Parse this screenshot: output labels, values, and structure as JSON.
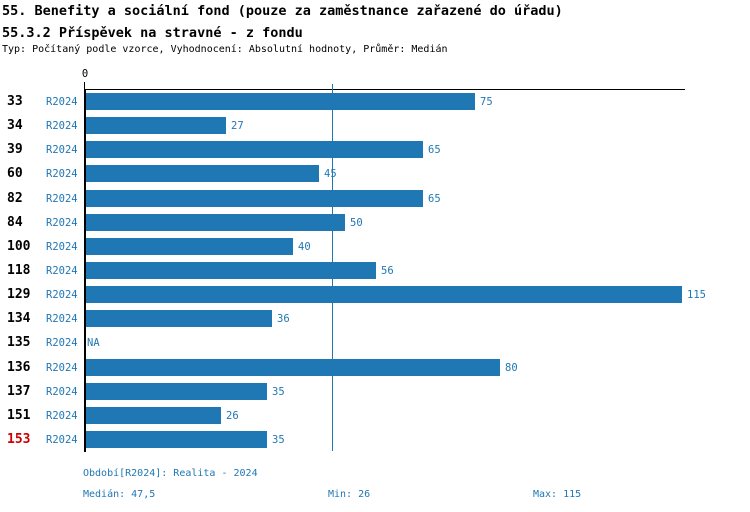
{
  "title": "55. Benefity a sociální fond (pouze za zaměstnance zařazené do úřadu)",
  "subtitle": "55.3.2 Příspěvek na stravné - z fondu",
  "meta": "Typ: Počítaný podle vzorce, Vyhodnocení: Absolutní hodnoty, Průměr: Medián",
  "colors": {
    "bar_blue": "#1f77b4",
    "text_blue": "#1f77b4",
    "highlight_red": "#cc0000",
    "axis_black": "#000000"
  },
  "chart_data": {
    "type": "bar",
    "orientation": "horizontal",
    "title": "55.3.2 Příspěvek na stravné - z fondu",
    "series_label": "R2024",
    "categories": [
      "33",
      "34",
      "39",
      "60",
      "82",
      "84",
      "100",
      "118",
      "129",
      "134",
      "135",
      "136",
      "137",
      "151",
      "153"
    ],
    "values": [
      75,
      27,
      65,
      45,
      65,
      50,
      40,
      56,
      115,
      36,
      null,
      80,
      35,
      26,
      35
    ],
    "value_labels": [
      "75",
      "27",
      "65",
      "45",
      "65",
      "50",
      "40",
      "56",
      "115",
      "36",
      "NA",
      "80",
      "35",
      "26",
      "35"
    ],
    "highlighted_category": "153",
    "axis": {
      "origin_label": "0",
      "xmin": 0,
      "xmax": 115,
      "median_gridline": 47.5
    },
    "grid": "single vertical median line",
    "legend_position": "none"
  },
  "footer": {
    "period_info": "Období[R2024]: Realita - 2024",
    "median": "Medián: 47,5",
    "min": "Min: 26",
    "max": "Max: 115"
  }
}
